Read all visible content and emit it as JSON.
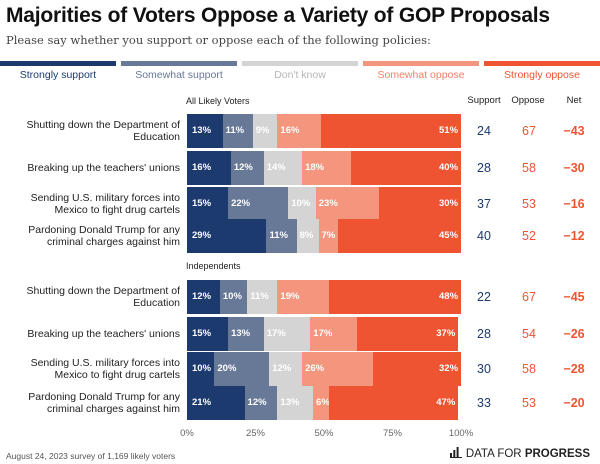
{
  "title": "Majorities of Voters Oppose a Variety of GOP Proposals",
  "subtitle": "Please say whether you support or oppose each of the following policies:",
  "legend": [
    {
      "label": "Strongly support",
      "color": "#1c3a6e",
      "text_color": "#1c3a6e"
    },
    {
      "label": "Somewhat support",
      "color": "#687897",
      "text_color": "#687897"
    },
    {
      "label": "Don't know",
      "color": "#d4d4d4",
      "text_color": "#b5b5b5"
    },
    {
      "label": "Somewhat oppose",
      "color": "#f4957e",
      "text_color": "#f08266"
    },
    {
      "label": "Strongly oppose",
      "color": "#ef5432",
      "text_color": "#ef5432"
    }
  ],
  "stat_headers": {
    "support": "Support",
    "oppose": "Oppose",
    "net": "Net"
  },
  "colors": {
    "support_stat": "#1c3a6e",
    "oppose_stat": "#ef5432"
  },
  "chart_data": {
    "type": "bar",
    "orientation": "horizontal",
    "stacked": true,
    "xlim": [
      0,
      100
    ],
    "x_ticks": [
      "0%",
      "25%",
      "50%",
      "75%",
      "100%"
    ],
    "segment_order": [
      "Strongly support",
      "Somewhat support",
      "Don't know",
      "Somewhat oppose",
      "Strongly oppose"
    ],
    "groups": [
      {
        "name": "All Likely Voters",
        "rows": [
          {
            "label": "Shutting down the Department of Education",
            "values": [
              13,
              11,
              9,
              16,
              51
            ],
            "support": "24",
            "oppose": "67",
            "net": "−43"
          },
          {
            "label": "Breaking up the teachers' unions",
            "values": [
              16,
              12,
              14,
              18,
              40
            ],
            "support": "28",
            "oppose": "58",
            "net": "−30"
          },
          {
            "label": "Sending U.S. military forces into Mexico to fight drug cartels",
            "values": [
              15,
              22,
              10,
              23,
              30
            ],
            "support": "37",
            "oppose": "53",
            "net": "−16"
          },
          {
            "label": "Pardoning Donald Trump for any criminal charges against him",
            "values": [
              29,
              11,
              8,
              7,
              45
            ],
            "support": "40",
            "oppose": "52",
            "net": "−12"
          }
        ]
      },
      {
        "name": "Independents",
        "rows": [
          {
            "label": "Shutting down the Department of Education",
            "values": [
              12,
              10,
              11,
              19,
              48
            ],
            "support": "22",
            "oppose": "67",
            "net": "−45"
          },
          {
            "label": "Breaking up the teachers' unions",
            "values": [
              15,
              13,
              17,
              17,
              37
            ],
            "support": "28",
            "oppose": "54",
            "net": "−26"
          },
          {
            "label": "Sending U.S. military forces into Mexico to fight drug cartels",
            "values": [
              10,
              20,
              12,
              26,
              32
            ],
            "support": "30",
            "oppose": "58",
            "net": "−28"
          },
          {
            "label": "Pardoning Donald Trump for any criminal charges against him",
            "values": [
              21,
              12,
              13,
              6,
              47
            ],
            "support": "33",
            "oppose": "53",
            "net": "−20"
          }
        ]
      }
    ]
  },
  "footer": "August 24, 2023 survey of 1,169 likely voters",
  "logo": {
    "prefix": "DATA FOR ",
    "bold": "PROGRESS"
  }
}
